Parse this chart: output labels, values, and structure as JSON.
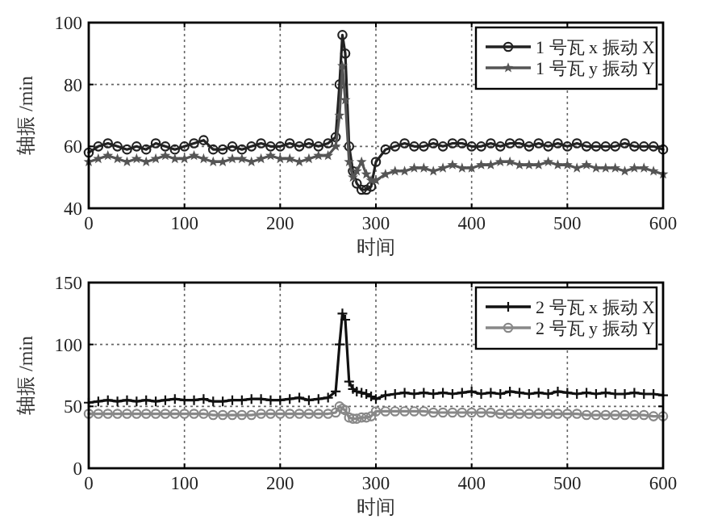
{
  "chart_data": [
    {
      "type": "line",
      "xlabel": "时间",
      "ylabel": "轴振 /min",
      "xlim": [
        0,
        600
      ],
      "xticks": [
        0,
        100,
        200,
        300,
        400,
        500,
        600
      ],
      "ylim": [
        40,
        100
      ],
      "yticks": [
        40,
        60,
        80,
        100
      ],
      "grid": true,
      "legend": "top right",
      "line_style": "solid",
      "x": [
        0,
        10,
        20,
        30,
        40,
        50,
        60,
        70,
        80,
        90,
        100,
        110,
        120,
        130,
        140,
        150,
        160,
        170,
        180,
        190,
        200,
        210,
        220,
        230,
        240,
        250,
        258,
        262,
        265,
        268,
        272,
        276,
        280,
        285,
        290,
        295,
        300,
        310,
        320,
        330,
        340,
        350,
        360,
        370,
        380,
        390,
        400,
        410,
        420,
        430,
        440,
        450,
        460,
        470,
        480,
        490,
        500,
        510,
        520,
        530,
        540,
        550,
        560,
        570,
        580,
        590,
        600
      ],
      "series": [
        {
          "name": "1 号瓦 x 振动 X",
          "color": "#222222",
          "marker": "circle",
          "values": [
            58,
            60,
            61,
            60,
            59,
            60,
            59,
            61,
            60,
            59,
            60,
            61,
            62,
            59,
            59,
            60,
            59,
            60,
            61,
            60,
            60,
            61,
            60,
            61,
            60,
            61,
            63,
            80,
            96,
            90,
            60,
            52,
            48,
            46,
            46,
            47,
            55,
            59,
            60,
            61,
            60,
            60,
            61,
            60,
            61,
            61,
            60,
            60,
            61,
            60,
            61,
            61,
            60,
            61,
            60,
            61,
            60,
            61,
            60,
            60,
            60,
            60,
            61,
            60,
            60,
            60,
            59
          ]
        },
        {
          "name": "1 号瓦 y 振动 Y",
          "color": "#555555",
          "marker": "star",
          "values": [
            55,
            56,
            57,
            56,
            55,
            56,
            55,
            56,
            57,
            56,
            56,
            57,
            56,
            55,
            55,
            56,
            56,
            55,
            56,
            57,
            56,
            56,
            55,
            56,
            57,
            57,
            60,
            70,
            86,
            75,
            55,
            50,
            52,
            55,
            51,
            49,
            49,
            51,
            52,
            52,
            53,
            53,
            52,
            53,
            54,
            53,
            53,
            54,
            54,
            55,
            55,
            54,
            54,
            54,
            55,
            54,
            54,
            53,
            54,
            53,
            53,
            53,
            52,
            53,
            53,
            52,
            51
          ]
        }
      ]
    },
    {
      "type": "line",
      "xlabel": "时间",
      "ylabel": "轴振 /min",
      "xlim": [
        0,
        600
      ],
      "xticks": [
        0,
        100,
        200,
        300,
        400,
        500,
        600
      ],
      "ylim": [
        0,
        150
      ],
      "yticks": [
        0,
        50,
        100,
        150
      ],
      "grid": true,
      "legend": "top right",
      "line_style": "solid",
      "x": [
        0,
        10,
        20,
        30,
        40,
        50,
        60,
        70,
        80,
        90,
        100,
        110,
        120,
        130,
        140,
        150,
        160,
        170,
        180,
        190,
        200,
        210,
        220,
        230,
        240,
        250,
        258,
        262,
        265,
        268,
        272,
        276,
        280,
        285,
        290,
        295,
        300,
        310,
        320,
        330,
        340,
        350,
        360,
        370,
        380,
        390,
        400,
        410,
        420,
        430,
        440,
        450,
        460,
        470,
        480,
        490,
        500,
        510,
        520,
        530,
        540,
        550,
        560,
        570,
        580,
        590,
        600
      ],
      "series": [
        {
          "name": "2 号瓦 x 振动 X",
          "color": "#111111",
          "marker": "cross",
          "values": [
            53,
            54,
            55,
            54,
            55,
            54,
            55,
            54,
            55,
            56,
            55,
            55,
            56,
            54,
            54,
            55,
            55,
            56,
            56,
            55,
            55,
            56,
            57,
            55,
            56,
            57,
            62,
            100,
            125,
            120,
            70,
            64,
            62,
            61,
            60,
            58,
            56,
            59,
            60,
            61,
            60,
            61,
            60,
            61,
            60,
            61,
            62,
            60,
            61,
            60,
            62,
            61,
            60,
            61,
            60,
            62,
            61,
            60,
            61,
            60,
            61,
            60,
            60,
            61,
            60,
            60,
            59
          ]
        },
        {
          "name": "2 号瓦 y 振动 Y",
          "color": "#888888",
          "marker": "circle",
          "values": [
            44,
            44,
            44,
            44,
            44,
            44,
            44,
            44,
            44,
            44,
            44,
            44,
            44,
            43,
            43,
            43,
            43,
            43,
            44,
            44,
            44,
            44,
            44,
            44,
            44,
            44,
            45,
            50,
            48,
            47,
            41,
            40,
            40,
            41,
            41,
            42,
            46,
            46,
            46,
            46,
            46,
            46,
            45,
            45,
            45,
            45,
            45,
            45,
            45,
            44,
            44,
            44,
            44,
            44,
            44,
            44,
            44,
            44,
            43,
            43,
            43,
            43,
            43,
            43,
            43,
            42,
            42
          ]
        }
      ]
    }
  ]
}
